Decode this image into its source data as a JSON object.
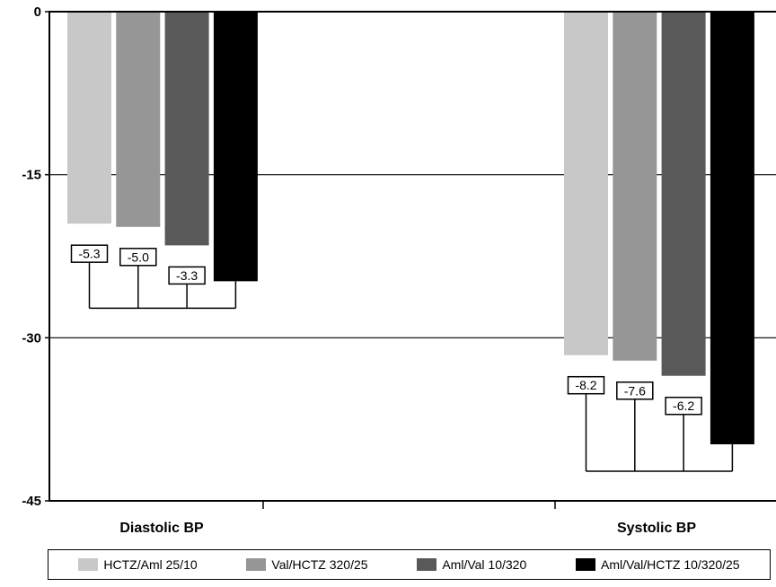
{
  "chart_data": {
    "type": "bar",
    "title": "",
    "xlabel": "",
    "ylabel": "",
    "ylim": [
      -45,
      0
    ],
    "yticks": [
      0,
      -15,
      -30,
      -45
    ],
    "grid": true,
    "legend_position": "bottom",
    "categories": [
      "Diastolic BP",
      "Systolic BP"
    ],
    "series": [
      {
        "name": "HCTZ/Aml 25/10",
        "color": "#c8c8c8",
        "values": [
          -19.5,
          -31.6
        ]
      },
      {
        "name": "Val/HCTZ 320/25",
        "color": "#969696",
        "values": [
          -19.8,
          -32.1
        ]
      },
      {
        "name": "Aml/Val 10/320",
        "color": "#595959",
        "values": [
          -21.5,
          -33.5
        ]
      },
      {
        "name": "Aml/Val/HCTZ 10/320/25",
        "color": "#000000",
        "values": [
          -24.8,
          -39.8
        ]
      }
    ],
    "annotations": [
      {
        "category": "Diastolic BP",
        "from_series": 0,
        "to_series": 3,
        "label": "-5.3"
      },
      {
        "category": "Diastolic BP",
        "from_series": 1,
        "to_series": 3,
        "label": "-5.0"
      },
      {
        "category": "Diastolic BP",
        "from_series": 2,
        "to_series": 3,
        "label": "-3.3"
      },
      {
        "category": "Systolic BP",
        "from_series": 0,
        "to_series": 3,
        "label": "-8.2"
      },
      {
        "category": "Systolic BP",
        "from_series": 1,
        "to_series": 3,
        "label": "-7.6"
      },
      {
        "category": "Systolic BP",
        "from_series": 2,
        "to_series": 3,
        "label": "-6.2"
      }
    ]
  }
}
